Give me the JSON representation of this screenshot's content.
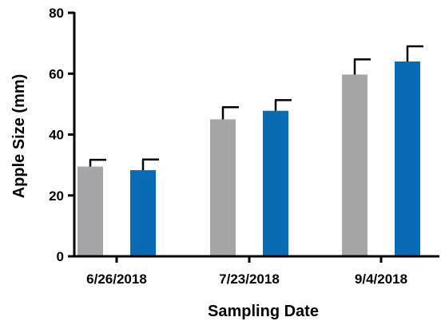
{
  "chart_data": {
    "type": "bar",
    "categories": [
      "6/26/2018",
      "7/23/2018",
      "9/4/2018"
    ],
    "series": [
      {
        "color": "#A6A6A8",
        "values": [
          29.5,
          45,
          59.7
        ],
        "errors": [
          2.2,
          4,
          5
        ]
      },
      {
        "color": "#0A6BB5",
        "values": [
          28.3,
          47.8,
          64
        ],
        "errors": [
          3.5,
          3.5,
          5
        ]
      }
    ],
    "title": "",
    "xlabel": "Sampling Date",
    "ylabel": "Apple Size (mm)",
    "ylim": [
      0,
      80
    ],
    "yticks": [
      0,
      20,
      40,
      60,
      80
    ],
    "grid": false,
    "error_bars": "upper"
  }
}
